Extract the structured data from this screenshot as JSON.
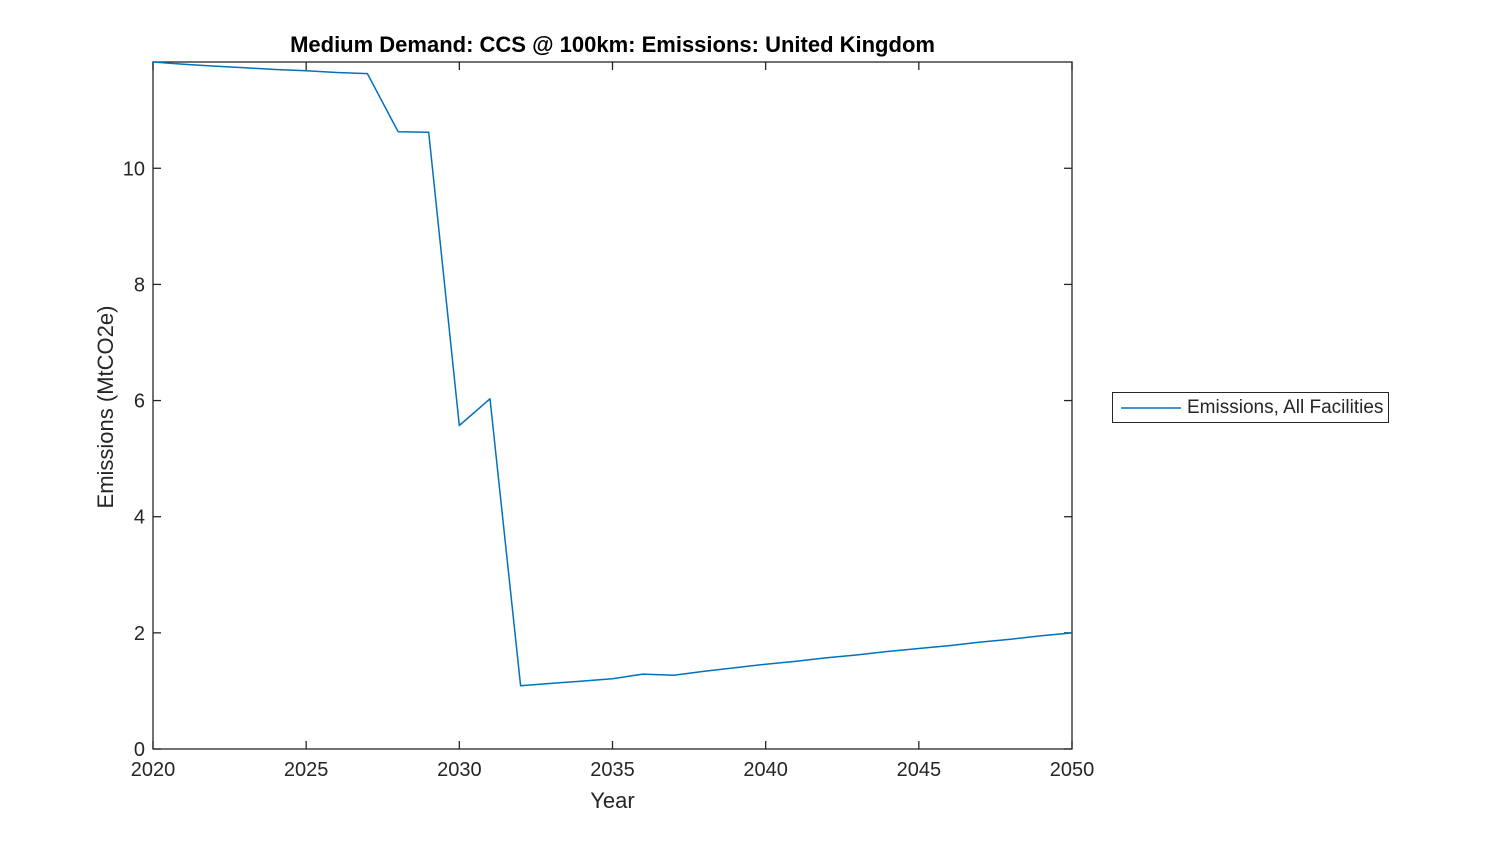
{
  "chart": {
    "title": "Medium Demand: CCS @ 100km: Emissions: United Kingdom",
    "xlabel": "Year",
    "ylabel": "Emissions (MtCO2e)",
    "legend_entries": [
      "Emissions, All Facilities"
    ]
  },
  "chart_data": {
    "type": "line",
    "title": "Medium Demand: CCS @ 100km: Emissions: United Kingdom",
    "xlabel": "Year",
    "ylabel": "Emissions (MtCO2e)",
    "grid": false,
    "legend_position": "outside-right",
    "xlim": [
      2020,
      2050
    ],
    "ylim": [
      0,
      11.83
    ],
    "x_ticks": [
      2020,
      2025,
      2030,
      2035,
      2040,
      2045,
      2050
    ],
    "y_ticks": [
      0,
      2,
      4,
      6,
      8,
      10
    ],
    "colors": {
      "line": "#0072BD",
      "axis": "#262626",
      "title": "#000000",
      "background": "#FFFFFF"
    },
    "series": [
      {
        "name": "Emissions, All Facilities",
        "x": [
          2020,
          2021,
          2022,
          2023,
          2024,
          2025,
          2026,
          2027,
          2028,
          2029,
          2030,
          2031,
          2032,
          2033,
          2034,
          2035,
          2036,
          2037,
          2038,
          2039,
          2040,
          2041,
          2042,
          2043,
          2044,
          2045,
          2046,
          2047,
          2048,
          2049,
          2050
        ],
        "y": [
          11.83,
          11.79,
          11.76,
          11.73,
          11.7,
          11.68,
          11.65,
          11.63,
          10.63,
          10.62,
          5.57,
          6.03,
          1.09,
          1.13,
          1.17,
          1.21,
          1.29,
          1.27,
          1.34,
          1.4,
          1.46,
          1.51,
          1.57,
          1.62,
          1.68,
          1.73,
          1.78,
          1.84,
          1.89,
          1.95,
          2.0
        ]
      }
    ]
  }
}
